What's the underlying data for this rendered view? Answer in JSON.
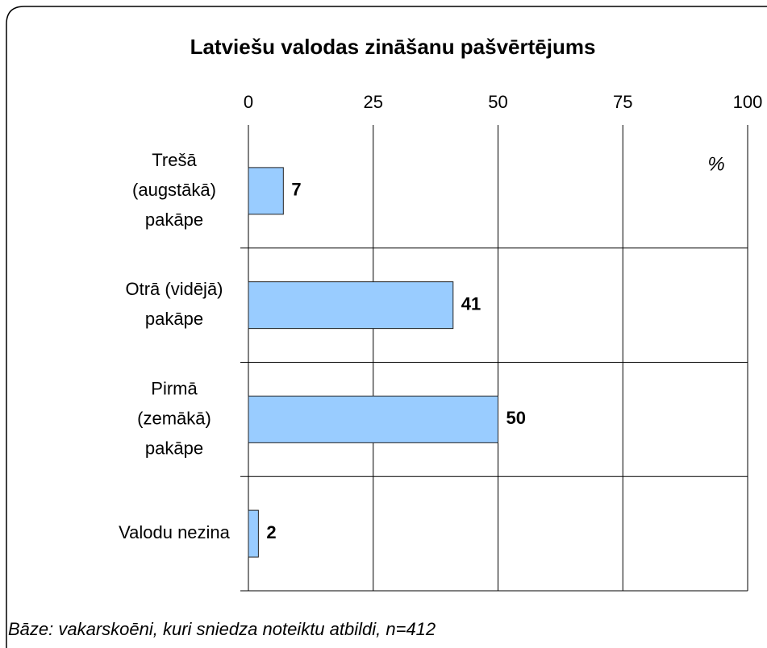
{
  "chart_data": {
    "type": "bar",
    "orientation": "horizontal",
    "title": "Latviešu valodas zināšanu pašvērtējums",
    "categories": [
      "Trešā\n(augstākā)\npakāpe",
      "Otrā (vidējā)\npakāpe",
      "Pirmā\n(zemākā)\npakāpe",
      "Valodu nezina"
    ],
    "values": [
      7,
      41,
      50,
      2
    ],
    "color": "#99ccff",
    "xlim": [
      0,
      100
    ],
    "xticks": [
      0,
      25,
      50,
      75,
      100
    ],
    "grid": true,
    "annotation": "%",
    "footnote": "Bāze: vakarskoēni, kuri sniedza noteiktu atbildi, n=412"
  }
}
